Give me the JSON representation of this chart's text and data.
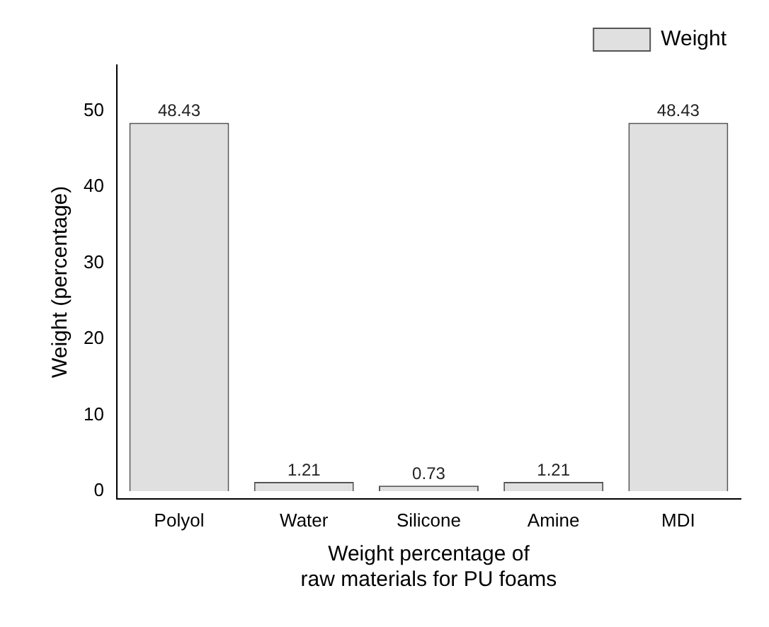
{
  "chart_data": {
    "type": "bar",
    "xlabel": "Weight percentage of\nraw materials for PU foams",
    "ylabel": "Weight (percentage)",
    "categories": [
      "Polyol",
      "Water",
      "Silicone",
      "Amine",
      "MDI"
    ],
    "series": [
      {
        "name": "Weight",
        "color": "#e0e0e0",
        "values": [
          48.43,
          1.21,
          0.73,
          1.21,
          48.43
        ]
      }
    ],
    "ylim": [
      -1,
      56
    ],
    "yticks": [
      0,
      10,
      20,
      30,
      40,
      50
    ],
    "grid": false,
    "legend": "top right",
    "data_labels": true
  }
}
